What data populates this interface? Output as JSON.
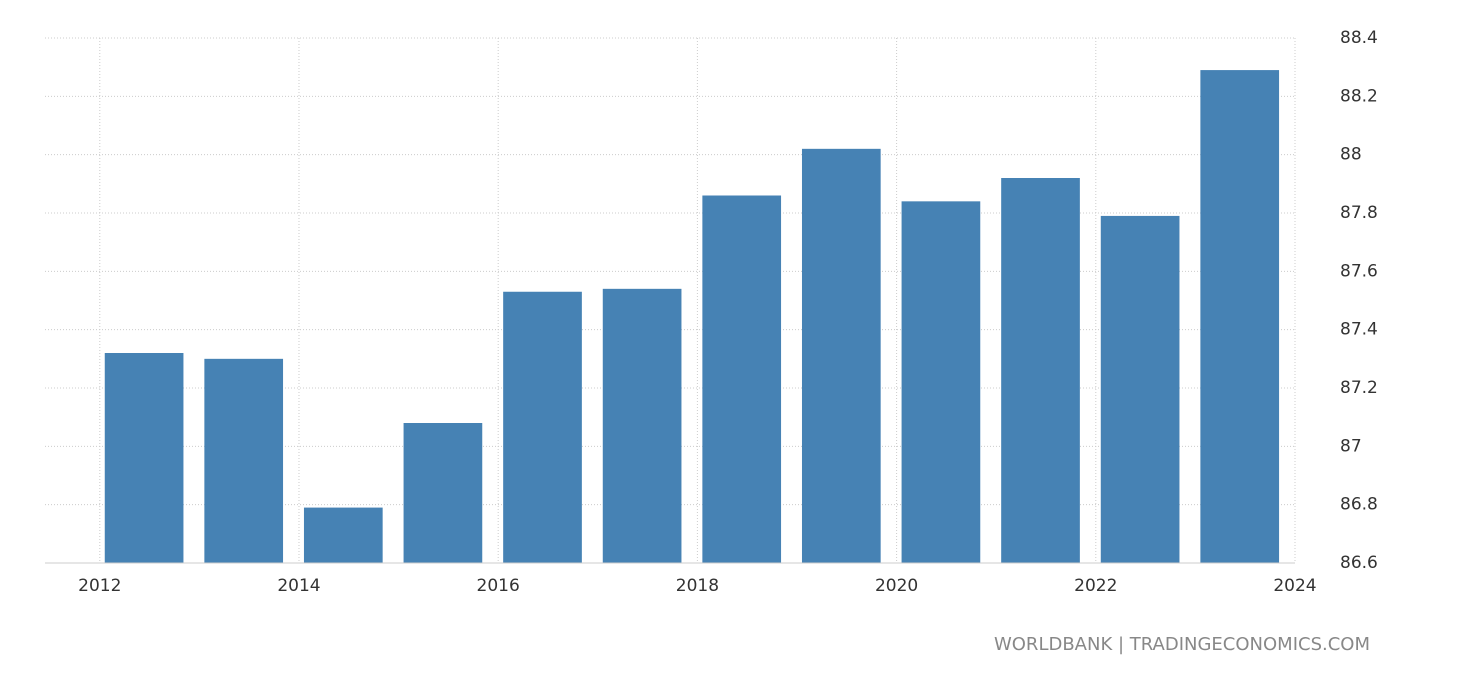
{
  "chart_data": {
    "type": "bar",
    "x": [
      2012,
      2013,
      2014,
      2015,
      2016,
      2017,
      2018,
      2019,
      2020,
      2021,
      2022,
      2023
    ],
    "values": [
      87.32,
      87.3,
      86.79,
      87.08,
      87.53,
      87.54,
      87.86,
      88.02,
      87.84,
      87.92,
      87.79,
      88.29
    ],
    "color": "#4682b4",
    "xlim": [
      2011.45,
      2024
    ],
    "xticks": [
      2012,
      2014,
      2016,
      2018,
      2020,
      2022,
      2024
    ],
    "ylim": [
      86.6,
      88.4
    ],
    "yticks": [
      86.6,
      86.8,
      87,
      87.2,
      87.4,
      87.6,
      87.8,
      88,
      88.2,
      88.4
    ],
    "grid": true,
    "source": "WORLDBANK | TRADINGECONOMICS.COM"
  }
}
